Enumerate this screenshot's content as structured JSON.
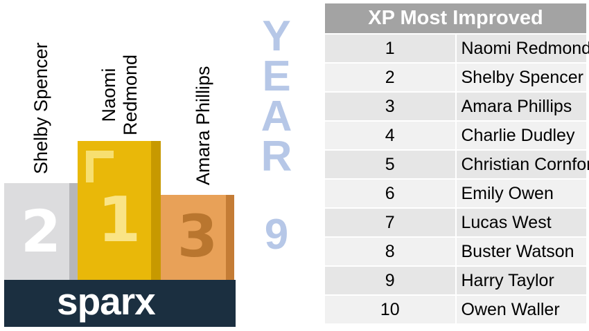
{
  "podium": {
    "second": {
      "rank_label": "2",
      "name": "Shelby Spencer",
      "color": "#dcdcde"
    },
    "first": {
      "rank_label": "1",
      "name_line1": "Naomi",
      "name_line2": "Redmond",
      "color": "#e9b809"
    },
    "third": {
      "rank_label": "3",
      "name": "Amara Phillips",
      "color": "#e8a158"
    },
    "logo_text": "sparx",
    "base_color": "#1b2f40"
  },
  "year_banner": {
    "letters": [
      "Y",
      "E",
      "A",
      "R"
    ],
    "number": "9",
    "color": "#b6c7e7"
  },
  "ranking": {
    "title": "XP Most Improved",
    "rows": [
      {
        "rank": "1",
        "name": "Naomi Redmond"
      },
      {
        "rank": "2",
        "name": "Shelby Spencer"
      },
      {
        "rank": "3",
        "name": "Amara Phillips"
      },
      {
        "rank": "4",
        "name": "Charlie Dudley"
      },
      {
        "rank": "5",
        "name": "Christian Cornforth"
      },
      {
        "rank": "6",
        "name": "Emily Owen"
      },
      {
        "rank": "7",
        "name": "Lucas West"
      },
      {
        "rank": "8",
        "name": "Buster Watson"
      },
      {
        "rank": "9",
        "name": "Harry Taylor"
      },
      {
        "rank": "10",
        "name": "Owen Waller"
      }
    ]
  }
}
